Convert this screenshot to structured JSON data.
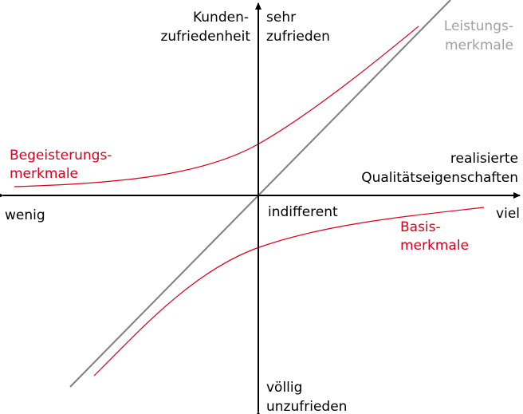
{
  "colors": {
    "axis": "#000000",
    "performance_line": "#808080",
    "curve": "#d8001c",
    "performance_label": "#a0a0a0",
    "text": "#000000"
  },
  "y_axis": {
    "title_line1": "Kunden-",
    "title_line2": "zufriedenheit",
    "top_line1": "sehr",
    "top_line2": "zufrieden",
    "bottom_line1": "völlig",
    "bottom_line2": "unzufrieden"
  },
  "x_axis": {
    "title_line1": "realisierte",
    "title_line2": "Qualitätseigenschaften",
    "left_label": "wenig",
    "right_label": "viel",
    "origin_label": "indifferent"
  },
  "curves": {
    "performance_line1": "Leistungs-",
    "performance_line2": "merkmale",
    "excitement_line1": "Begeisterungs-",
    "excitement_line2": "merkmale",
    "basic_line1": "Basis-",
    "basic_line2": "merkmale"
  }
}
